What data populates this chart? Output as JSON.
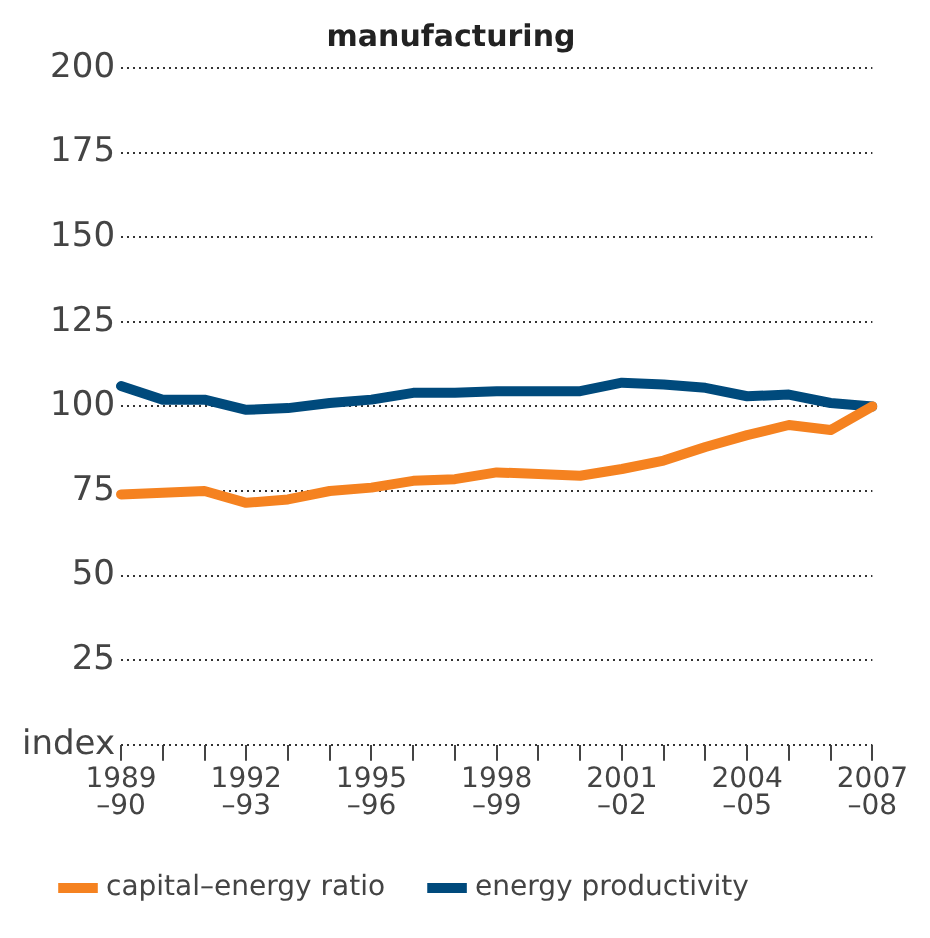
{
  "chart_data": {
    "type": "line",
    "title": "manufacturing",
    "categories": [
      "1989–90",
      null,
      null,
      "1992–93",
      null,
      null,
      "1995–96",
      null,
      null,
      "1998–99",
      null,
      null,
      "2001–02",
      null,
      null,
      "2004–05",
      null,
      null,
      "2007–08"
    ],
    "series": [
      {
        "name": "capital–energy ratio",
        "color": "#f58220",
        "values": [
          74,
          74.5,
          75,
          71.5,
          72.5,
          75,
          76,
          78,
          78.5,
          80.5,
          80,
          79.5,
          81.5,
          84,
          88,
          91.5,
          94.5,
          93,
          100
        ]
      },
      {
        "name": "energy productivity",
        "color": "#004a7c",
        "values": [
          106,
          102,
          102,
          99,
          99.5,
          101,
          102,
          104,
          104,
          104.5,
          104.5,
          104.5,
          107,
          106.5,
          105.5,
          103,
          103.5,
          101,
          100
        ]
      }
    ],
    "ylim": [
      0,
      200
    ],
    "yticks": [
      {
        "value": 0,
        "label": "index"
      },
      25,
      50,
      75,
      100,
      125,
      150,
      175,
      200
    ],
    "grid": "y",
    "legend": "bottom",
    "marker": "none",
    "line_style": "solid"
  }
}
